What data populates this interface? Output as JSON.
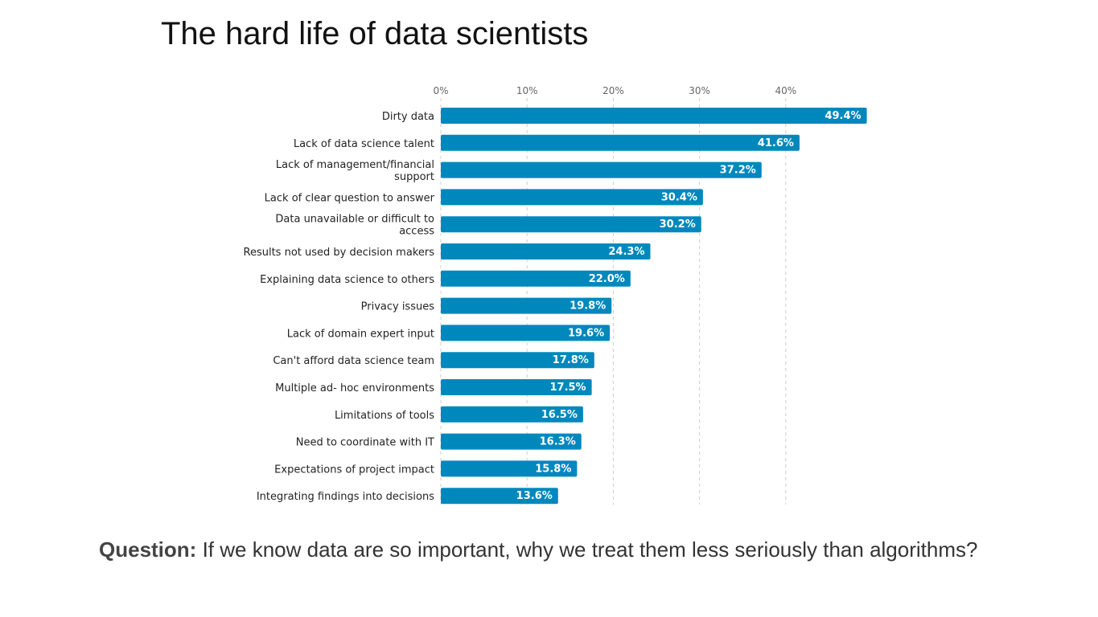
{
  "slide": {
    "title": "The hard life of data scientists",
    "question_label": "Question:",
    "question_text": "If we know data are so important, why we treat them less seriously than algorithms?"
  },
  "colors": {
    "bar": "#0088bd",
    "bar_label": "#ffffff",
    "gridline": "#cccccc",
    "category_text": "#222222",
    "tick_text": "#666666"
  },
  "chart_data": {
    "type": "bar",
    "orientation": "horizontal",
    "title": "",
    "xlabel": "",
    "ylabel": "",
    "xlim": [
      0,
      50
    ],
    "ticks": [
      0,
      10,
      20,
      30,
      40
    ],
    "tick_labels": [
      "0%",
      "10%",
      "20%",
      "30%",
      "40%"
    ],
    "grid": true,
    "categories": [
      [
        "Dirty data"
      ],
      [
        "Lack of data science talent"
      ],
      [
        "Lack of management/financial",
        "support"
      ],
      [
        "Lack of clear question to answer"
      ],
      [
        "Data unavailable or difficult to",
        "access"
      ],
      [
        "Results not used by decision makers"
      ],
      [
        "Explaining data science to others"
      ],
      [
        "Privacy issues"
      ],
      [
        "Lack of domain expert input"
      ],
      [
        "Can't afford data science team"
      ],
      [
        "Multiple ad- hoc environments"
      ],
      [
        "Limitations of tools"
      ],
      [
        "Need to coordinate with IT"
      ],
      [
        "Expectations of project impact"
      ],
      [
        "Integrating findings into decisions"
      ]
    ],
    "values": [
      49.4,
      41.6,
      37.2,
      30.4,
      30.2,
      24.3,
      22.0,
      19.8,
      19.6,
      17.8,
      17.5,
      16.5,
      16.3,
      15.8,
      13.6
    ],
    "value_labels": [
      "49.4%",
      "41.6%",
      "37.2%",
      "30.4%",
      "30.2%",
      "24.3%",
      "22.0%",
      "19.8%",
      "19.6%",
      "17.8%",
      "17.5%",
      "16.5%",
      "16.3%",
      "15.8%",
      "13.6%"
    ]
  }
}
